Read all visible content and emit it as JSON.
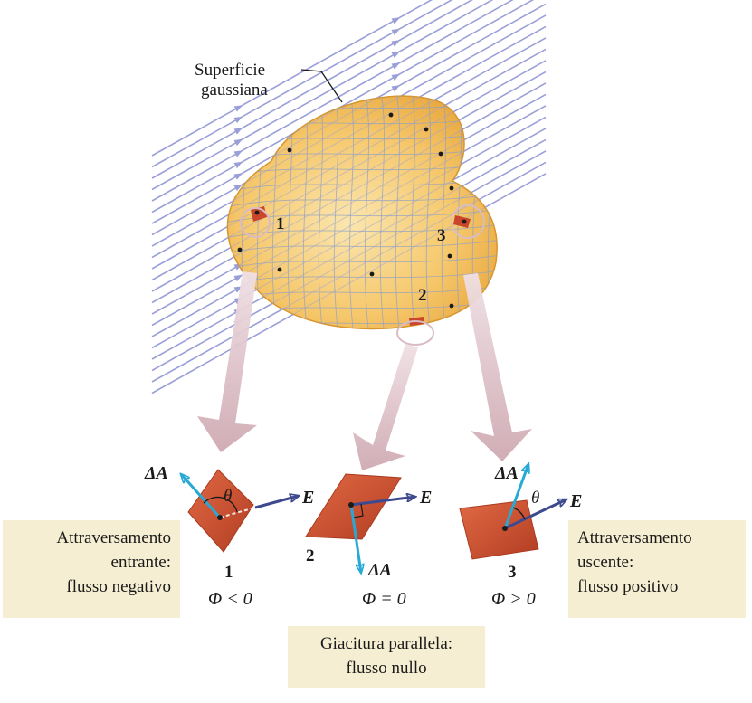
{
  "surface_label": [
    "Superficie",
    "gaussiana"
  ],
  "patch_numbers": [
    "1",
    "2",
    "3"
  ],
  "area_vector": "ΔA",
  "field_vector": "E",
  "angle": "θ",
  "flux_conditions": [
    "Φ < 0",
    "Φ = 0",
    "Φ > 0"
  ],
  "notes": {
    "left": [
      "Attraversamento",
      "entrante:",
      "flusso negativo"
    ],
    "right": [
      "Attraversamento",
      "uscente:",
      "flusso positivo"
    ],
    "center": [
      "Giacitura parallela:",
      "flusso nullo"
    ]
  },
  "colors": {
    "field_lines": "#9a9fd8",
    "surface": "#f6c86c",
    "patch": "#c9462c",
    "normal_arrow": "#27a9d6",
    "field_arrow": "#3f4a8e",
    "callout_arrow": "#d9bcc3",
    "note_background": "#f6eed2"
  }
}
